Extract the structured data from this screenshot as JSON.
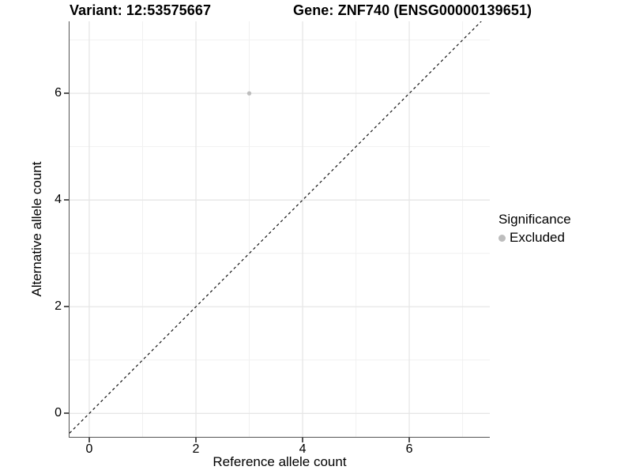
{
  "titles": {
    "variant": "Variant: 12:53575667",
    "gene": "Gene: ZNF740 (ENSG00000139651)"
  },
  "axes": {
    "x_label": "Reference allele count",
    "y_label": "Alternative allele count",
    "x_tick_labels": [
      "0",
      "2",
      "4",
      "6"
    ],
    "y_tick_labels": [
      "0",
      "2",
      "4",
      "6"
    ]
  },
  "legend": {
    "title": "Significance",
    "items": [
      {
        "label": "Excluded",
        "color": "#bdbdbd",
        "marker": "dot-icon"
      }
    ]
  },
  "colors": {
    "background": "#ffffff",
    "text": "#000000",
    "axis_line": "#555555",
    "grid_major": "#e6e6e6",
    "grid_minor": "#f1f1f1",
    "reference_line": "#141414",
    "excluded": "#bdbdbd"
  },
  "chart_data": {
    "type": "scatter",
    "title": "Variant: 12:53575667   Gene: ZNF740 (ENSG00000139651)",
    "xlabel": "Reference allele count",
    "ylabel": "Alternative allele count",
    "xlim": [
      -0.37,
      7.51
    ],
    "ylim": [
      -0.44,
      7.35
    ],
    "x_ticks": [
      0,
      2,
      4,
      6
    ],
    "y_ticks": [
      0,
      2,
      4,
      6
    ],
    "x_minor_ticks": [
      1,
      3,
      5,
      7
    ],
    "y_minor_ticks": [
      1,
      3,
      5,
      7
    ],
    "grid": "on",
    "legend_position": "right",
    "legend_title": "Significance",
    "legend_entries": [
      "Excluded"
    ],
    "series": [
      {
        "name": "Excluded",
        "color": "#bdbdbd",
        "marker": "circle",
        "marker_radius_px": 2.7,
        "points": [
          {
            "x": 3,
            "y": 6
          }
        ]
      }
    ],
    "reference_line": {
      "kind": "identity",
      "equation": "y = x",
      "style": "dashed",
      "color": "#141414"
    }
  }
}
